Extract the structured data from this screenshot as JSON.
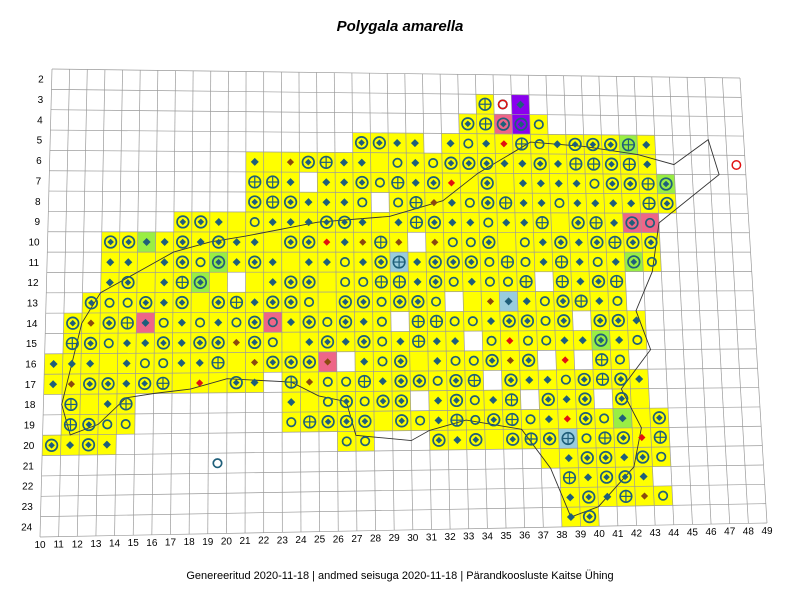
{
  "title": "Polygala amarella",
  "footer": "Genereeritud 2020-11-18  |  andmed seisuga 2020-11-18  |  Pärandkoosluste Kaitse Ühing",
  "colors": {
    "grid": "#9a9a9a",
    "border": "#333333",
    "yellow": "#ffff00",
    "green": "#99ee44",
    "pink": "#ee6688",
    "purple": "#8a00ee",
    "blue": "#99ccdd",
    "teal": "#1f5f7a",
    "red": "#e11111",
    "brown": "#8a4a10"
  },
  "row_labels": [
    "2",
    "3",
    "4",
    "5",
    "6",
    "7",
    "8",
    "9",
    "10",
    "11",
    "12",
    "13",
    "14",
    "15",
    "16",
    "17",
    "18",
    "19",
    "20",
    "21",
    "22",
    "23",
    "24"
  ],
  "col_labels": [
    "10",
    "11",
    "12",
    "13",
    "14",
    "15",
    "16",
    "17",
    "18",
    "19",
    "20",
    "21",
    "22",
    "23",
    "24",
    "25",
    "26",
    "27",
    "28",
    "29",
    "30",
    "31",
    "32",
    "33",
    "34",
    "35",
    "36",
    "37",
    "38",
    "39",
    "40",
    "41",
    "42",
    "43",
    "44",
    "45",
    "46",
    "47",
    "48",
    "49"
  ],
  "legend_symbols": [
    "teal-diamond",
    "teal-circle",
    "diamond-in-circle",
    "crosshair-circle",
    "teal-cross",
    "red-circle",
    "red-diamond",
    "brown-diamond"
  ]
}
